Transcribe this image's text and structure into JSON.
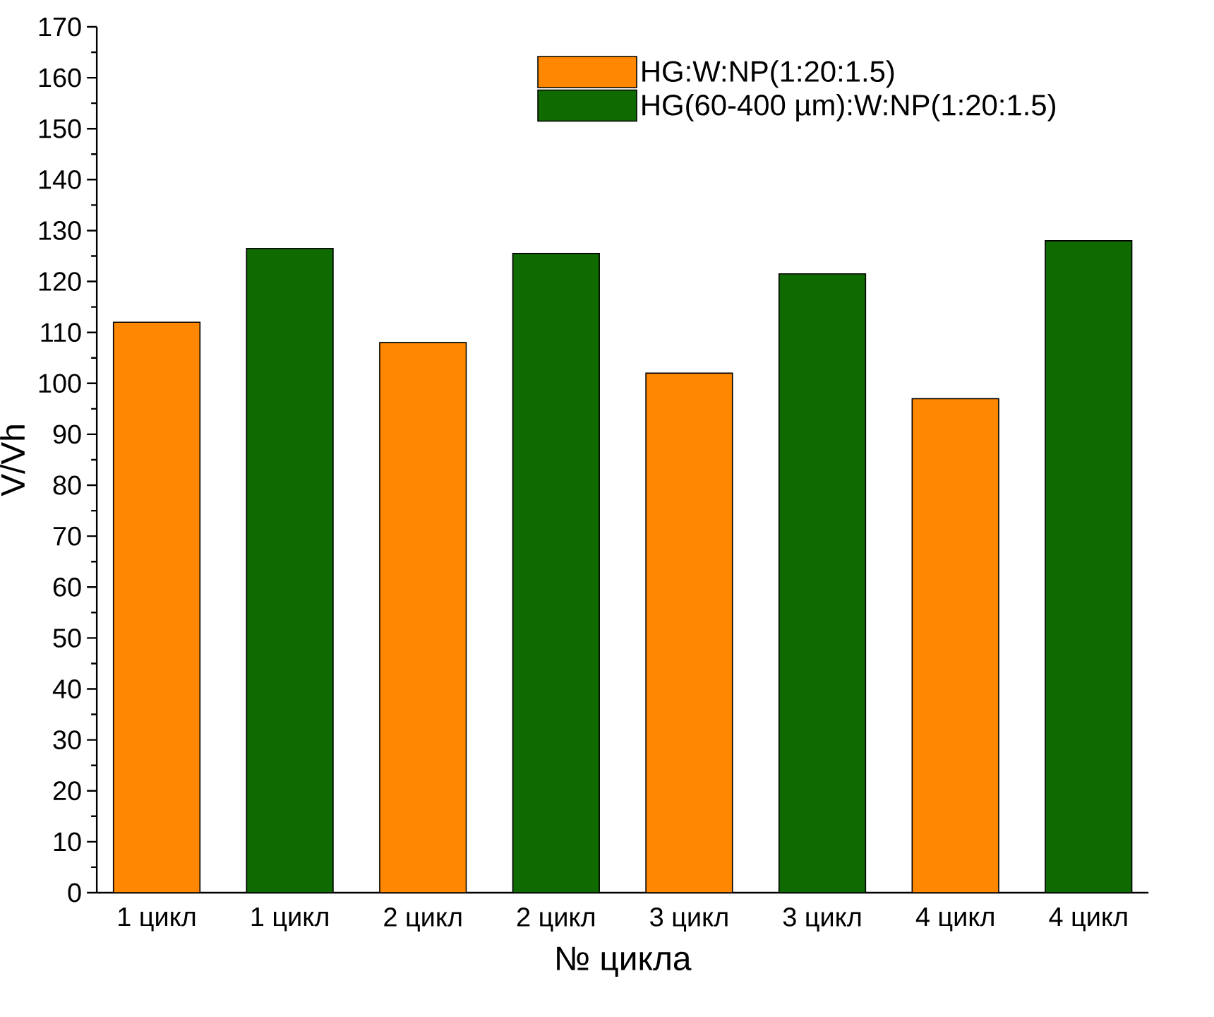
{
  "chart_data": {
    "type": "bar",
    "xlabel": "№ цикла",
    "ylabel": "V/Vh",
    "categories": [
      "1 цикл",
      "1 цикл",
      "2 цикл",
      "2 цикл",
      "3 цикл",
      "3 цикл",
      "4 цикл",
      "4 цикл"
    ],
    "series": [
      {
        "name": "HG:W:NP(1:20:1.5)",
        "color": "#ff8800",
        "values": [
          112,
          null,
          108,
          null,
          102,
          null,
          97,
          null
        ]
      },
      {
        "name": "HG(60-400 µm):W:NP(1:20:1.5)",
        "color": "#0f6b00",
        "values": [
          null,
          126.5,
          null,
          125.5,
          null,
          121.5,
          null,
          128
        ]
      }
    ],
    "ylim": [
      0,
      170
    ],
    "yticks": [
      0,
      10,
      20,
      30,
      40,
      50,
      60,
      70,
      80,
      90,
      100,
      110,
      120,
      130,
      140,
      150,
      160,
      170
    ],
    "legend": "top right",
    "grid": false
  }
}
